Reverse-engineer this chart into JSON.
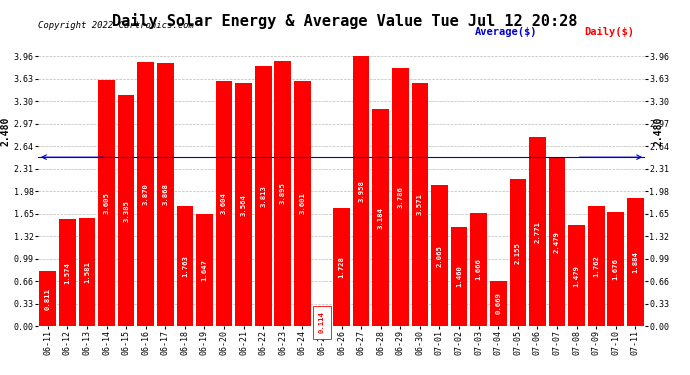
{
  "title": "Daily Solar Energy & Average Value Tue Jul 12 20:28",
  "copyright": "Copyright 2022 Cartronics.com",
  "legend_average": "Average($)",
  "legend_daily": "Daily($)",
  "average_line_value": 2.48,
  "average_label": "2.480",
  "categories": [
    "06-11",
    "06-12",
    "06-13",
    "06-14",
    "06-15",
    "06-16",
    "06-17",
    "06-18",
    "06-19",
    "06-20",
    "06-21",
    "06-22",
    "06-23",
    "06-24",
    "06-25",
    "06-26",
    "06-27",
    "06-28",
    "06-29",
    "06-30",
    "07-01",
    "07-02",
    "07-03",
    "07-04",
    "07-05",
    "07-06",
    "07-07",
    "07-08",
    "07-09",
    "07-10",
    "07-11"
  ],
  "values": [
    0.811,
    1.574,
    1.581,
    3.605,
    3.385,
    3.87,
    3.868,
    1.763,
    1.647,
    3.604,
    3.564,
    3.813,
    3.895,
    3.601,
    0.114,
    1.728,
    3.958,
    3.184,
    3.786,
    3.571,
    2.065,
    1.46,
    1.666,
    0.669,
    2.155,
    2.771,
    2.479,
    1.479,
    1.762,
    1.676,
    1.884
  ],
  "bar_color": "#ff0000",
  "average_line_color": "#0000cc",
  "highlight_bar_index": 14,
  "highlight_text_color": "#ff0000",
  "normal_text_color": "#ffffff",
  "ylim": [
    0,
    3.96
  ],
  "yticks": [
    0.0,
    0.33,
    0.66,
    0.99,
    1.32,
    1.65,
    1.98,
    2.31,
    2.64,
    2.97,
    3.3,
    3.63,
    3.96
  ],
  "background_color": "#ffffff",
  "grid_color": "#bbbbbb",
  "title_fontsize": 11,
  "copyright_fontsize": 6.5,
  "bar_label_fontsize": 5.2,
  "tick_fontsize": 6,
  "legend_fontsize": 7.5,
  "avg_label_fontsize": 7
}
